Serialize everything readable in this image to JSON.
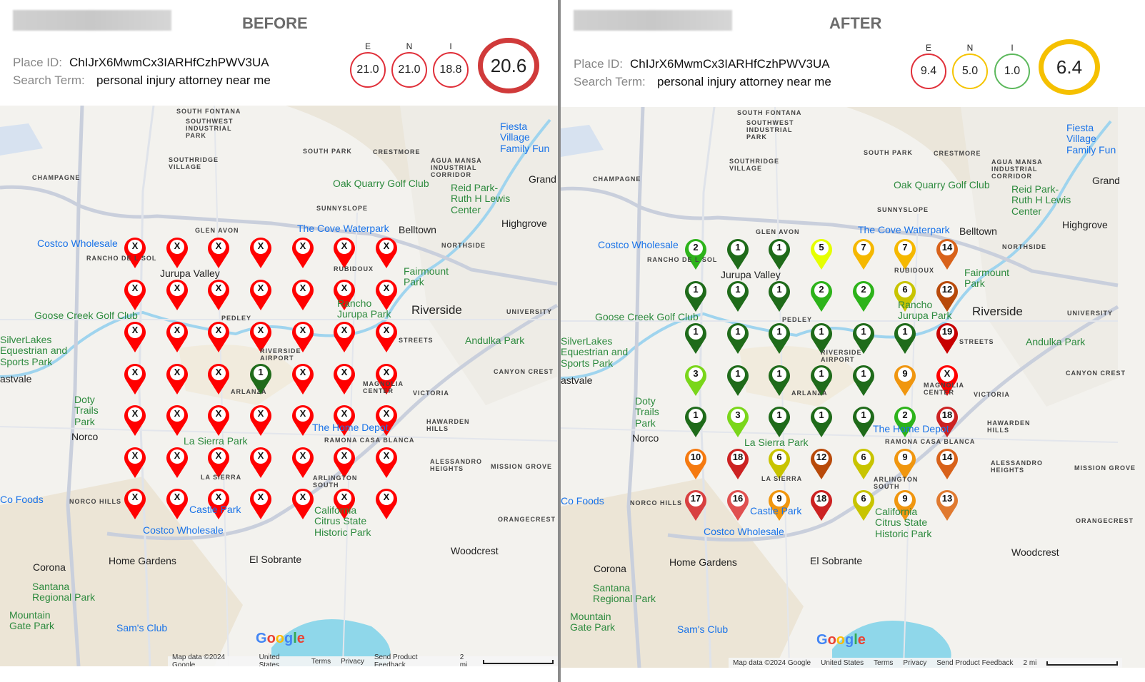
{
  "panels": [
    {
      "title": "BEFORE",
      "place_id_label": "Place ID:",
      "place_id": "ChIJrX6MwmCx3IARHfCzhPWV3UA",
      "search_term_label": "Search Term:",
      "search_term": "personal injury attorney near me",
      "score_labels": [
        "E",
        "N",
        "I"
      ],
      "scores": [
        "21.0",
        "21.0",
        "18.8"
      ],
      "overall": "20.6",
      "score_colors": [
        "#e0303a",
        "#e0303a",
        "#e0303a"
      ],
      "overall_color": "#d03a3a",
      "grid": [
        [
          "X",
          "X",
          "X",
          "X",
          "X",
          "X",
          "X"
        ],
        [
          "X",
          "X",
          "X",
          "X",
          "X",
          "X",
          "X"
        ],
        [
          "X",
          "X",
          "X",
          "X",
          "X",
          "X",
          "X"
        ],
        [
          "X",
          "X",
          "X",
          "1",
          "X",
          "X",
          "X"
        ],
        [
          "X",
          "X",
          "X",
          "X",
          "X",
          "X",
          "X"
        ],
        [
          "X",
          "X",
          "X",
          "X",
          "X",
          "X",
          "X"
        ],
        [
          "X",
          "X",
          "X",
          "X",
          "X",
          "X",
          "X"
        ]
      ]
    },
    {
      "title": "AFTER",
      "place_id_label": "Place ID:",
      "place_id": "ChIJrX6MwmCx3IARHfCzhPWV3UA",
      "search_term_label": "Search Term:",
      "search_term": "personal injury attorney near me",
      "score_labels": [
        "E",
        "N",
        "I"
      ],
      "scores": [
        "9.4",
        "5.0",
        "1.0"
      ],
      "overall": "6.4",
      "score_colors": [
        "#e0303a",
        "#f5c400",
        "#5cb85c"
      ],
      "overall_color": "#f5c000",
      "grid": [
        [
          "2",
          "1",
          "1",
          "5",
          "7",
          "7",
          "14"
        ],
        [
          "1",
          "1",
          "1",
          "2",
          "2",
          "6",
          "12"
        ],
        [
          "1",
          "1",
          "1",
          "1",
          "1",
          "1",
          "19"
        ],
        [
          "3",
          "1",
          "1",
          "1",
          "1",
          "9",
          "X"
        ],
        [
          "1",
          "3",
          "1",
          "1",
          "1",
          "2",
          "18"
        ],
        [
          "10",
          "18",
          "6",
          "12",
          "6",
          "9",
          "14"
        ],
        [
          "17",
          "16",
          "9",
          "18",
          "6",
          "9",
          "13"
        ]
      ]
    }
  ],
  "rank_colors": {
    "1": "#1f6b1a",
    "2": "#2db31a",
    "3": "#7ad61a",
    "5": "#e5ff00",
    "6": "#c8c400",
    "7": "#f5b800",
    "9": "#f0960f",
    "10": "#f57a10",
    "12": "#b84a0a",
    "13": "#e07a30",
    "14": "#d8621a",
    "16": "#e05050",
    "17": "#d84040",
    "18": "#cc2222",
    "19": "#c80000",
    "X": "#ff0000"
  },
  "map_labels": [
    "SOUTH FONTANA",
    "SOUTHWEST INDUSTRIAL PARK",
    "SOUTHRIDGE VILLAGE",
    "SOUTH PARK",
    "CRESTMORE",
    "AGUA MANSA INDUSTRIAL CORRIDOR",
    "CHAMPAGNE",
    "Oak Quarry Golf Club",
    "Reid Park-Ruth H Lewis Center",
    "Fiesta Village Family Fun",
    "Grand",
    "SUNNYSLOPE",
    "Highgrove",
    "GLEN AVON",
    "The Cove Waterpark",
    "Belltown",
    "Costco Wholesale",
    "NORTHSIDE",
    "RANCHO DE L SOL",
    "Jurupa Valley",
    "RUBIDOUX",
    "Fairmount Park",
    "Rancho Jurupa Park",
    "Riverside",
    "UNIVERSITY",
    "PEDLEY",
    "Goose Creek Golf Club",
    "SilverLakes Equestrian and Sports Park",
    "STREETS",
    "Andulka Park",
    "RIVERSIDE AIRPORT",
    "astvale",
    "CANYON CREST",
    "ARLANZA",
    "Doty Trails Park",
    "VICTORIA",
    "MAGNOLIA CENTER",
    "The Home Depot",
    "HAWARDEN HILLS",
    "Norco",
    "RAMONA CASA BLANCA",
    "La Sierra Park",
    "ALESSANDRO HEIGHTS",
    "MISSION GROVE",
    "LA SIERRA",
    "ARLINGTON SOUTH",
    "Castle Park",
    "California Citrus State Historic Park",
    "NORCO HILLS",
    "Co Foods",
    "ORANGECREST",
    "Costco Wholesale",
    "Woodcrest",
    "Home Gardens",
    "El Sobrante",
    "Corona",
    "Santana Regional Park",
    "Mountain Gate Park",
    "Sam's Club"
  ],
  "footer": {
    "map_data": "Map data ©2024 Google",
    "country": "United States",
    "terms": "Terms",
    "privacy": "Privacy",
    "feedback": "Send Product Feedback",
    "scale": "2 mi"
  },
  "logo": "Google"
}
